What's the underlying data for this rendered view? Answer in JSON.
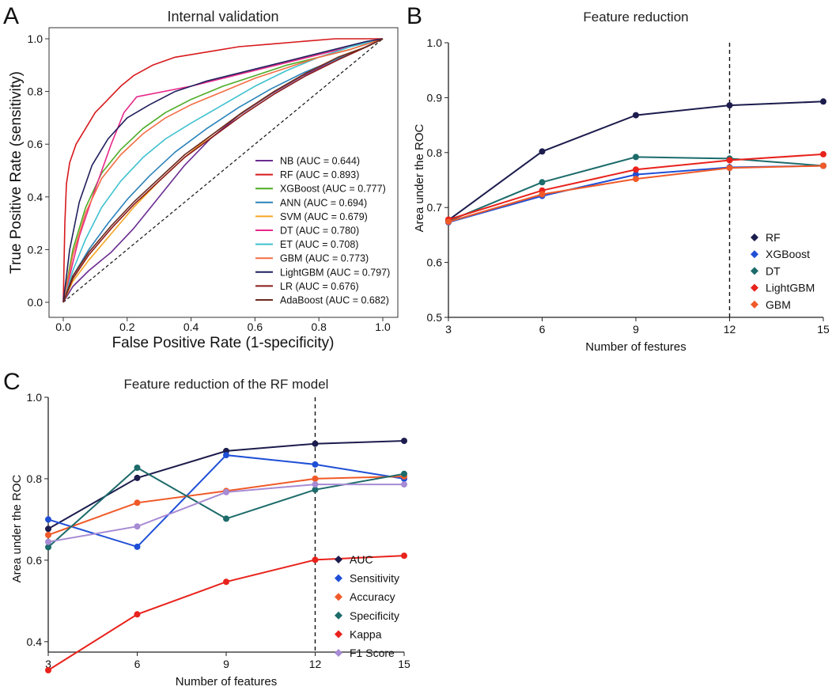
{
  "chart_data": [
    {
      "panel_label": "A",
      "type": "line",
      "title": "Internal validation",
      "xlabel": "False Positive Rate (1-specificity)",
      "ylabel": "True Positive Rate (sensitivity)",
      "xlim": [
        0,
        1
      ],
      "ylim": [
        0,
        1
      ],
      "x_ticks": [
        "0.0",
        "0.2",
        "0.4",
        "0.6",
        "0.8",
        "1.0"
      ],
      "y_ticks": [
        "0.0",
        "0.2",
        "0.4",
        "0.6",
        "0.8",
        "1.0"
      ],
      "legend_position": "bottom-right",
      "reference_line": "diagonal dashed",
      "series": [
        {
          "name": "NB (AUC = 0.644)",
          "color": "#6a2c91",
          "x": [
            0,
            0.03,
            0.08,
            0.15,
            0.22,
            0.3,
            0.38,
            0.46,
            0.55,
            0.65,
            0.75,
            0.85,
            0.93,
            1
          ],
          "y": [
            0,
            0.06,
            0.12,
            0.19,
            0.28,
            0.4,
            0.52,
            0.62,
            0.71,
            0.79,
            0.86,
            0.92,
            0.96,
            1
          ]
        },
        {
          "name": "RF (AUC = 0.893)",
          "color": "#d7191c",
          "x": [
            0,
            0.005,
            0.01,
            0.02,
            0.04,
            0.07,
            0.1,
            0.14,
            0.18,
            0.22,
            0.28,
            0.35,
            0.45,
            0.55,
            0.65,
            0.75,
            0.85,
            0.95,
            1
          ],
          "y": [
            0,
            0.3,
            0.45,
            0.53,
            0.6,
            0.66,
            0.72,
            0.77,
            0.82,
            0.86,
            0.9,
            0.93,
            0.95,
            0.97,
            0.98,
            0.99,
            1,
            1,
            1
          ]
        },
        {
          "name": "XGBoost (AUC = 0.777)",
          "color": "#4dac26",
          "x": [
            0,
            0.03,
            0.07,
            0.12,
            0.18,
            0.25,
            0.32,
            0.4,
            0.5,
            0.6,
            0.7,
            0.8,
            0.9,
            1
          ],
          "y": [
            0,
            0.2,
            0.36,
            0.49,
            0.58,
            0.66,
            0.72,
            0.77,
            0.82,
            0.86,
            0.9,
            0.93,
            0.96,
            1
          ]
        },
        {
          "name": "ANN (AUC = 0.694)",
          "color": "#2b83ba",
          "x": [
            0,
            0.03,
            0.08,
            0.14,
            0.2,
            0.27,
            0.35,
            0.45,
            0.55,
            0.65,
            0.75,
            0.85,
            0.95,
            1
          ],
          "y": [
            0,
            0.1,
            0.2,
            0.3,
            0.39,
            0.48,
            0.57,
            0.66,
            0.74,
            0.81,
            0.87,
            0.92,
            0.97,
            1
          ]
        },
        {
          "name": "SVM (AUC = 0.679)",
          "color": "#f5a623",
          "x": [
            0,
            0.03,
            0.08,
            0.15,
            0.22,
            0.3,
            0.38,
            0.47,
            0.56,
            0.66,
            0.76,
            0.86,
            0.95,
            1
          ],
          "y": [
            0,
            0.08,
            0.16,
            0.26,
            0.36,
            0.46,
            0.55,
            0.64,
            0.72,
            0.8,
            0.87,
            0.93,
            0.97,
            1
          ]
        },
        {
          "name": "DT (AUC = 0.780)",
          "color": "#e7298a",
          "x": [
            0,
            0.05,
            0.1,
            0.15,
            0.19,
            0.23,
            0.4,
            0.6,
            0.8,
            1
          ],
          "y": [
            0,
            0.25,
            0.43,
            0.6,
            0.72,
            0.78,
            0.82,
            0.88,
            0.94,
            1
          ]
        },
        {
          "name": "ET (AUC = 0.708)",
          "color": "#3fc1d0",
          "x": [
            0,
            0.03,
            0.07,
            0.12,
            0.18,
            0.25,
            0.32,
            0.4,
            0.5,
            0.6,
            0.7,
            0.8,
            0.9,
            1
          ],
          "y": [
            0,
            0.12,
            0.24,
            0.36,
            0.46,
            0.55,
            0.62,
            0.68,
            0.75,
            0.82,
            0.88,
            0.93,
            0.97,
            1
          ]
        },
        {
          "name": "GBM (AUC = 0.773)",
          "color": "#f46d43",
          "x": [
            0,
            0.03,
            0.07,
            0.12,
            0.18,
            0.25,
            0.32,
            0.4,
            0.5,
            0.6,
            0.7,
            0.8,
            0.9,
            1
          ],
          "y": [
            0,
            0.18,
            0.34,
            0.47,
            0.56,
            0.64,
            0.7,
            0.75,
            0.8,
            0.85,
            0.89,
            0.93,
            0.96,
            1
          ]
        },
        {
          "name": "LightGBM (AUC = 0.797)",
          "color": "#1f1f5c",
          "x": [
            0,
            0.02,
            0.05,
            0.09,
            0.14,
            0.2,
            0.27,
            0.35,
            0.45,
            0.55,
            0.65,
            0.75,
            0.85,
            0.95,
            1
          ],
          "y": [
            0,
            0.2,
            0.38,
            0.52,
            0.62,
            0.7,
            0.75,
            0.8,
            0.84,
            0.87,
            0.9,
            0.93,
            0.96,
            0.99,
            1
          ]
        },
        {
          "name": "LR (AUC = 0.676)",
          "color": "#8b1a1a",
          "x": [
            0,
            0.03,
            0.08,
            0.15,
            0.22,
            0.3,
            0.38,
            0.47,
            0.56,
            0.66,
            0.76,
            0.86,
            0.95,
            1
          ],
          "y": [
            0,
            0.09,
            0.18,
            0.28,
            0.37,
            0.46,
            0.55,
            0.63,
            0.71,
            0.79,
            0.86,
            0.92,
            0.97,
            1
          ]
        },
        {
          "name": "AdaBoost (AUC = 0.682)",
          "color": "#6b2a1f",
          "x": [
            0,
            0.03,
            0.08,
            0.15,
            0.22,
            0.3,
            0.38,
            0.47,
            0.56,
            0.66,
            0.76,
            0.86,
            0.95,
            1
          ],
          "y": [
            0,
            0.1,
            0.19,
            0.29,
            0.38,
            0.47,
            0.56,
            0.64,
            0.72,
            0.8,
            0.87,
            0.93,
            0.97,
            1
          ]
        }
      ]
    },
    {
      "panel_label": "B",
      "type": "line",
      "title": "Feature reduction",
      "xlabel": "Number of festures",
      "ylabel": "Area under the ROC",
      "xlim": [
        3,
        15
      ],
      "ylim": [
        0.5,
        1.0
      ],
      "x_ticks": [
        "3",
        "6",
        "9",
        "12",
        "15"
      ],
      "y_ticks": [
        "0.5",
        "0.6",
        "0.7",
        "0.8",
        "0.9",
        "1.0"
      ],
      "vertical_dashed_line_at": 12,
      "legend_position": "bottom-right",
      "x": [
        3,
        6,
        9,
        12,
        15
      ],
      "series": [
        {
          "name": "RF",
          "color": "#1c1c4d",
          "values": [
            0.677,
            0.802,
            0.868,
            0.886,
            0.893
          ]
        },
        {
          "name": "XGBoost",
          "color": "#1f4fd6",
          "values": [
            0.673,
            0.721,
            0.76,
            0.773,
            0.776
          ]
        },
        {
          "name": "DT",
          "color": "#1d6b6b",
          "values": [
            0.675,
            0.746,
            0.792,
            0.789,
            0.776
          ]
        },
        {
          "name": "LightGBM",
          "color": "#e8221c",
          "values": [
            0.678,
            0.731,
            0.769,
            0.786,
            0.797
          ]
        },
        {
          "name": "GBM",
          "color": "#f05a28",
          "values": [
            0.674,
            0.724,
            0.752,
            0.772,
            0.776
          ]
        }
      ]
    },
    {
      "panel_label": "C",
      "type": "line",
      "title": "Feature reduction of the RF model",
      "xlabel": "Number of features",
      "ylabel": "Area under the ROC",
      "xlim": [
        3,
        15
      ],
      "ylim": [
        0.32,
        1.0
      ],
      "x_ticks": [
        "3",
        "6",
        "9",
        "12",
        "15"
      ],
      "y_ticks": [
        "0.4",
        "0.6",
        "0.8",
        "1.0"
      ],
      "vertical_dashed_line_at": 12,
      "legend_position": "bottom-right",
      "x": [
        3,
        6,
        9,
        12,
        15
      ],
      "series": [
        {
          "name": "AUC",
          "color": "#1c1c4d",
          "values": [
            0.677,
            0.802,
            0.868,
            0.886,
            0.893
          ]
        },
        {
          "name": "Sensitivity",
          "color": "#1f4fd6",
          "values": [
            0.7,
            0.633,
            0.858,
            0.835,
            0.8
          ]
        },
        {
          "name": "Accuracy",
          "color": "#f05a28",
          "values": [
            0.662,
            0.741,
            0.77,
            0.8,
            0.806
          ]
        },
        {
          "name": "Specificity",
          "color": "#1d6b6b",
          "values": [
            0.632,
            0.827,
            0.702,
            0.773,
            0.812
          ]
        },
        {
          "name": "Kappa",
          "color": "#e8221c",
          "values": [
            0.33,
            0.467,
            0.547,
            0.601,
            0.611
          ]
        },
        {
          "name": "F1 Score",
          "color": "#a78bd4",
          "values": [
            0.645,
            0.683,
            0.767,
            0.786,
            0.786
          ]
        }
      ]
    }
  ]
}
